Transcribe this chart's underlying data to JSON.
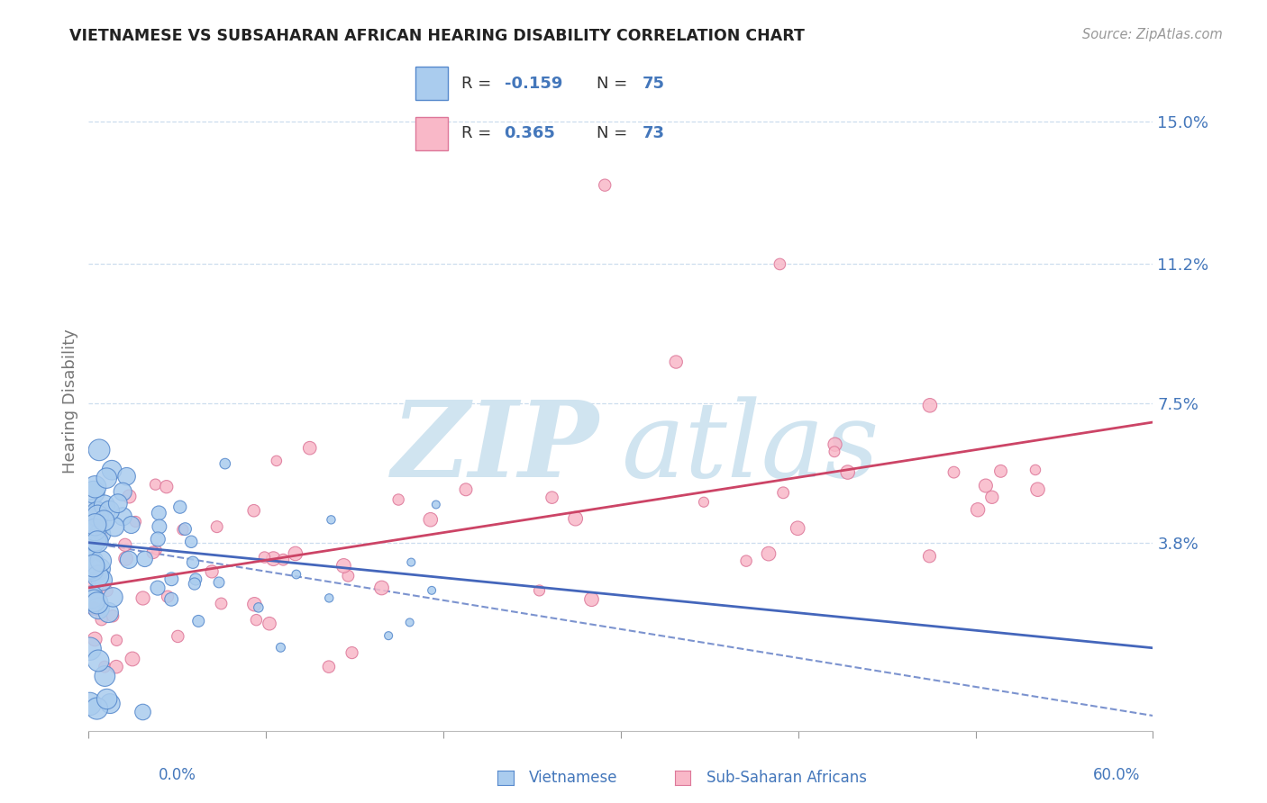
{
  "title": "VIETNAMESE VS SUBSAHARAN AFRICAN HEARING DISABILITY CORRELATION CHART",
  "source": "Source: ZipAtlas.com",
  "xlabel_viet": "Vietnamese",
  "xlabel_ssa": "Sub-Saharan Africans",
  "ylabel": "Hearing Disability",
  "watermark_zip": "ZIP",
  "watermark_atlas": "atlas",
  "xlim": [
    0.0,
    0.6
  ],
  "ylim": [
    -0.012,
    0.163
  ],
  "ytick_labels": [
    "3.8%",
    "7.5%",
    "11.2%",
    "15.0%"
  ],
  "ytick_vals": [
    0.038,
    0.075,
    0.112,
    0.15
  ],
  "R_viet": -0.159,
  "N_viet": 75,
  "R_ssa": 0.365,
  "N_ssa": 73,
  "color_viet_fill": "#aaccee",
  "color_viet_edge": "#5588cc",
  "color_ssa_fill": "#f9b8c8",
  "color_ssa_edge": "#dd7799",
  "color_viet_line": "#4466bb",
  "color_ssa_line": "#cc4466",
  "color_axis_labels": "#4477bb",
  "background": "#ffffff",
  "grid_color": "#ccddee",
  "watermark_color": "#d0e4f0"
}
